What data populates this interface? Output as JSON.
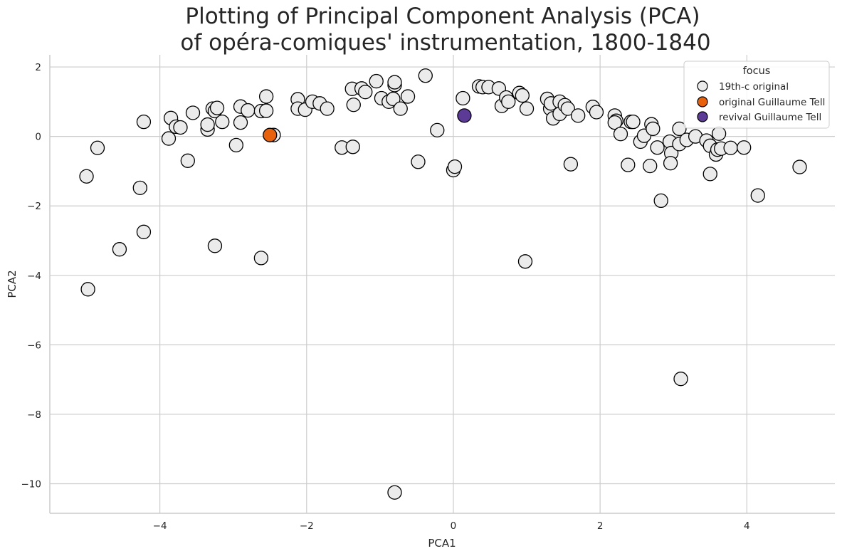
{
  "chart_data": {
    "type": "scatter",
    "title_line1": "Plotting of Principal Component Analysis (PCA)",
    "title_line2": "of opéra-comiques' instrumentation, 1800-1840",
    "xlabel": "PCA1",
    "ylabel": "PCA2",
    "xlim": [
      -5.5,
      5.2
    ],
    "ylim": [
      -10.85,
      2.35
    ],
    "xticks": [
      -4,
      -2,
      0,
      2,
      4
    ],
    "yticks": [
      2,
      0,
      -2,
      -4,
      -6,
      -8,
      -10
    ],
    "tick_labels_x": [
      "−4",
      "−2",
      "0",
      "2",
      "4"
    ],
    "tick_labels_y": [
      "2",
      "0",
      "−2",
      "−4",
      "−6",
      "−8",
      "−10"
    ],
    "grid": true,
    "legend": {
      "title": "focus",
      "placement": "top-right",
      "entries": [
        "19th-c original",
        "original Guillaume Tell",
        "revival Guillaume Tell"
      ]
    },
    "colors": {
      "original": "#ebebeb",
      "original_gt": "#e8620e",
      "revival_gt": "#5c3b96",
      "edge": "#000000",
      "grid": "#cccccc"
    },
    "series": [
      {
        "name": "19th-c original",
        "color": "#ebebeb",
        "points": [
          [
            -5.0,
            -1.15
          ],
          [
            -4.85,
            -0.33
          ],
          [
            -4.98,
            -4.4
          ],
          [
            -4.55,
            -3.25
          ],
          [
            -4.27,
            -1.48
          ],
          [
            -4.22,
            0.42
          ],
          [
            -4.22,
            -2.75
          ],
          [
            -3.88,
            -0.06
          ],
          [
            -3.85,
            0.53
          ],
          [
            -3.78,
            0.28
          ],
          [
            -3.72,
            0.26
          ],
          [
            -3.62,
            -0.7
          ],
          [
            -3.55,
            0.68
          ],
          [
            -3.35,
            0.2
          ],
          [
            -3.35,
            0.34
          ],
          [
            -3.28,
            0.8
          ],
          [
            -3.25,
            0.73
          ],
          [
            -3.22,
            0.82
          ],
          [
            -3.25,
            -3.15
          ],
          [
            -3.15,
            0.42
          ],
          [
            -2.96,
            -0.25
          ],
          [
            -2.9,
            0.86
          ],
          [
            -2.9,
            0.4
          ],
          [
            -2.8,
            0.75
          ],
          [
            -2.62,
            0.73
          ],
          [
            -2.62,
            -3.5
          ],
          [
            -2.55,
            1.15
          ],
          [
            -2.55,
            0.74
          ],
          [
            -2.45,
            0.04
          ],
          [
            -2.12,
            1.07
          ],
          [
            -2.12,
            0.8
          ],
          [
            -2.02,
            0.77
          ],
          [
            -1.92,
            1.0
          ],
          [
            -1.82,
            0.95
          ],
          [
            -1.72,
            0.8
          ],
          [
            -1.52,
            -0.32
          ],
          [
            -1.38,
            1.37
          ],
          [
            -1.36,
            0.91
          ],
          [
            -1.37,
            -0.3
          ],
          [
            -1.25,
            1.38
          ],
          [
            -1.2,
            1.28
          ],
          [
            -1.05,
            1.59
          ],
          [
            -0.98,
            1.1
          ],
          [
            -0.88,
            1.0
          ],
          [
            -0.82,
            1.08
          ],
          [
            -0.8,
            1.48
          ],
          [
            -0.8,
            1.56
          ],
          [
            -0.8,
            -10.25
          ],
          [
            -0.72,
            0.8
          ],
          [
            -0.62,
            1.15
          ],
          [
            -0.48,
            -0.73
          ],
          [
            -0.38,
            1.75
          ],
          [
            -0.22,
            0.18
          ],
          [
            0.0,
            -0.97
          ],
          [
            0.02,
            -0.87
          ],
          [
            0.13,
            1.1
          ],
          [
            0.35,
            1.44
          ],
          [
            0.4,
            1.42
          ],
          [
            0.48,
            1.42
          ],
          [
            0.62,
            1.38
          ],
          [
            0.66,
            0.88
          ],
          [
            0.72,
            1.12
          ],
          [
            0.75,
            1.0
          ],
          [
            0.9,
            1.25
          ],
          [
            0.94,
            1.18
          ],
          [
            0.98,
            -3.6
          ],
          [
            1.0,
            0.8
          ],
          [
            1.28,
            1.08
          ],
          [
            1.32,
            0.8
          ],
          [
            1.33,
            0.95
          ],
          [
            1.36,
            0.52
          ],
          [
            1.45,
            1.0
          ],
          [
            1.45,
            0.65
          ],
          [
            1.52,
            0.9
          ],
          [
            1.56,
            0.8
          ],
          [
            1.6,
            -0.8
          ],
          [
            1.7,
            0.6
          ],
          [
            1.9,
            0.85
          ],
          [
            1.95,
            0.7
          ],
          [
            2.2,
            0.6
          ],
          [
            2.22,
            0.45
          ],
          [
            2.2,
            0.4
          ],
          [
            2.28,
            0.07
          ],
          [
            2.38,
            -0.82
          ],
          [
            2.42,
            0.42
          ],
          [
            2.45,
            0.42
          ],
          [
            2.55,
            -0.15
          ],
          [
            2.6,
            0.02
          ],
          [
            2.68,
            -0.85
          ],
          [
            2.7,
            0.35
          ],
          [
            2.72,
            0.22
          ],
          [
            2.78,
            -0.32
          ],
          [
            2.83,
            -1.85
          ],
          [
            2.95,
            -0.15
          ],
          [
            2.97,
            -0.48
          ],
          [
            2.96,
            -0.77
          ],
          [
            3.08,
            0.22
          ],
          [
            3.08,
            -0.22
          ],
          [
            3.1,
            -6.98
          ],
          [
            3.18,
            -0.1
          ],
          [
            3.3,
            0.0
          ],
          [
            3.45,
            -0.12
          ],
          [
            3.5,
            -0.27
          ],
          [
            3.5,
            -1.08
          ],
          [
            3.58,
            -0.52
          ],
          [
            3.6,
            -0.38
          ],
          [
            3.62,
            0.08
          ],
          [
            3.65,
            -0.35
          ],
          [
            3.78,
            -0.33
          ],
          [
            3.96,
            -0.32
          ],
          [
            4.15,
            -1.7
          ],
          [
            4.72,
            -0.88
          ]
        ]
      },
      {
        "name": "original Guillaume Tell",
        "color": "#e8620e",
        "points": [
          [
            -2.5,
            0.04
          ]
        ]
      },
      {
        "name": "revival Guillaume Tell",
        "color": "#5c3b96",
        "points": [
          [
            0.15,
            0.6
          ]
        ]
      }
    ]
  }
}
